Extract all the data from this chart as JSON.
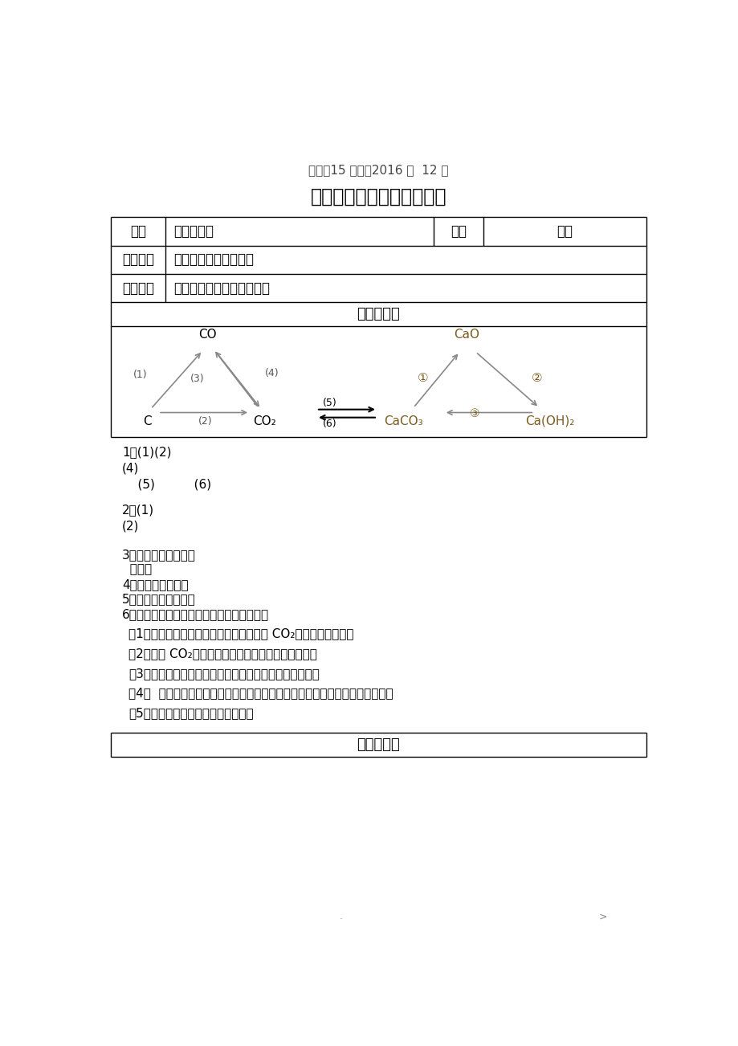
{
  "title_sub": "学案：15 时间：2016 年  12 月",
  "title_main": "九年级化学耹高班第十四讲",
  "row1_label": "课题",
  "row1_content": "推断实验题",
  "row1_label2": "课型",
  "row1_content2": "达标",
  "row2_label": "学习目标",
  "row2_content": "掌握推断题常见突破口",
  "row3_label": "重点难点",
  "row3_content": "推断题和实验题的解题思路",
  "sec1": "重要方程式",
  "q1": "1、(1)(2)",
  "q1b": "(4)",
  "q1c": "    (5)          (6)",
  "q2": "2、(1)",
  "q2b": "(2)",
  "q3": "3、固体颜色：红色：",
  "q3b": "  黑色：",
  "q4": "4、同种元素组成：",
  "q5": "5、二氧化碳的吸收：",
  "q6": "6、用化学方程式解释产生以下现象的原因。",
  "q6_1": "（1）向盛有紫色石蔽试液的试管入适量的 CO₂，溶液变为红色：",
  "q6_2": "（2）通入 CO₂变红的石蔽试液，加热后又变成紫色：",
  "q6_3": "（3）刚用石灰浆抹过的墙壁，过一两天墙壁会出汗的原因",
  "q6_4": "（4）  千锤万凿出深山，烈火燃烧假设等闲，粉身碎骨浑不怕，要留清白在人间",
  "q6_5": "（5）用稀盐酸除去热水瓶胆壁的水垃",
  "sec2": "重难点突破",
  "footer_l": ".",
  "footer_r": ">",
  "bg": "#ffffff",
  "node_color": "#7a5c1e",
  "gray_arrow": "#888888"
}
